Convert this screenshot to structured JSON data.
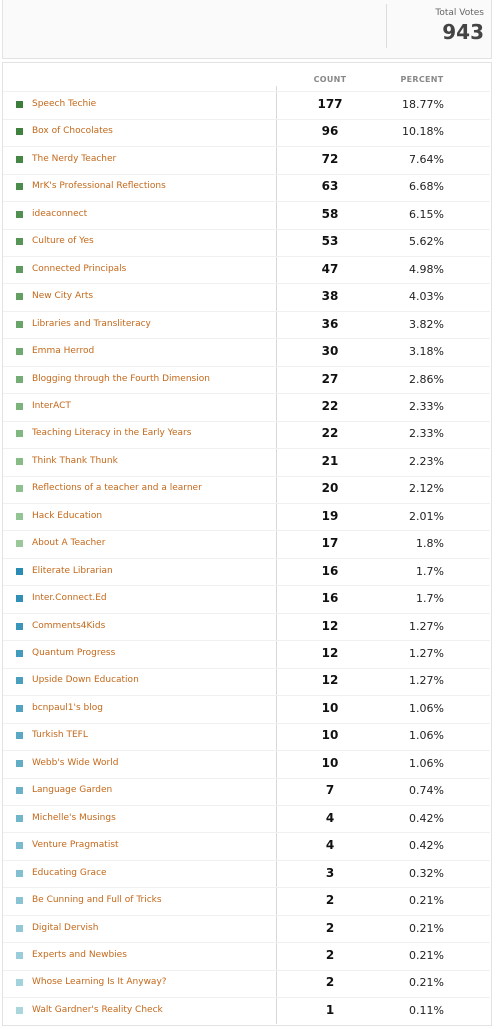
{
  "header": {
    "total_label": "Total Votes",
    "total": 943
  },
  "table": {
    "columns": [
      "COUNT",
      "PERCENT"
    ],
    "rows": [
      {
        "name": "Speech Techie",
        "count": 177,
        "percent": "18.77%",
        "color": "#3b7d3b"
      },
      {
        "name": "Box of Chocolates",
        "count": 96,
        "percent": "10.18%",
        "color": "#3f813f"
      },
      {
        "name": "The Nerdy Teacher",
        "count": 72,
        "percent": "7.64%",
        "color": "#458645"
      },
      {
        "name": "MrK's Professional Reflections",
        "count": 63,
        "percent": "6.68%",
        "color": "#4b8b4b"
      },
      {
        "name": "ideaconnect",
        "count": 58,
        "percent": "6.15%",
        "color": "#519051"
      },
      {
        "name": "Culture of Yes",
        "count": 53,
        "percent": "5.62%",
        "color": "#579557"
      },
      {
        "name": "Connected Principals",
        "count": 47,
        "percent": "4.98%",
        "color": "#5d9a5d"
      },
      {
        "name": "New City Arts",
        "count": 38,
        "percent": "4.03%",
        "color": "#639f63"
      },
      {
        "name": "Libraries and Transliteracy",
        "count": 36,
        "percent": "3.82%",
        "color": "#69a469"
      },
      {
        "name": "Emma Herrod",
        "count": 30,
        "percent": "3.18%",
        "color": "#6fa96f"
      },
      {
        "name": "Blogging through the Fourth Dimension",
        "count": 27,
        "percent": "2.86%",
        "color": "#75ae75"
      },
      {
        "name": "InterACT",
        "count": 22,
        "percent": "2.33%",
        "color": "#7bb37b"
      },
      {
        "name": "Teaching Literacy in the Early Years",
        "count": 22,
        "percent": "2.33%",
        "color": "#81b881"
      },
      {
        "name": "Think Thank Thunk",
        "count": 21,
        "percent": "2.23%",
        "color": "#87bc87"
      },
      {
        "name": "Reflections of a teacher and a learner",
        "count": 20,
        "percent": "2.12%",
        "color": "#8dc08d"
      },
      {
        "name": "Hack Education",
        "count": 19,
        "percent": "2.01%",
        "color": "#93c493"
      },
      {
        "name": "About A Teacher",
        "count": 17,
        "percent": "1.8%",
        "color": "#9ac89a"
      },
      {
        "name": "Eliterate Librarian",
        "count": 16,
        "percent": "1.7%",
        "color": "#2a8cb4"
      },
      {
        "name": "Inter.Connect.Ed",
        "count": 16,
        "percent": "1.7%",
        "color": "#3290b6"
      },
      {
        "name": "Comments4Kids",
        "count": 12,
        "percent": "1.27%",
        "color": "#3a95b9"
      },
      {
        "name": "Quantum Progress",
        "count": 12,
        "percent": "1.27%",
        "color": "#429abc"
      },
      {
        "name": "Upside Down Education",
        "count": 12,
        "percent": "1.27%",
        "color": "#4a9ebe"
      },
      {
        "name": "bcnpaul1's blog",
        "count": 10,
        "percent": "1.06%",
        "color": "#52a3c1"
      },
      {
        "name": "Turkish TEFL",
        "count": 10,
        "percent": "1.06%",
        "color": "#5aa8c4"
      },
      {
        "name": "Webb's Wide World",
        "count": 10,
        "percent": "1.06%",
        "color": "#62acc6"
      },
      {
        "name": "Language Garden",
        "count": 7,
        "percent": "0.74%",
        "color": "#6ab1c9"
      },
      {
        "name": "Michelle's Musings",
        "count": 4,
        "percent": "0.42%",
        "color": "#72b6cc"
      },
      {
        "name": "Venture Pragmatist",
        "count": 4,
        "percent": "0.42%",
        "color": "#7abace"
      },
      {
        "name": "Educating Grace",
        "count": 3,
        "percent": "0.32%",
        "color": "#82bfd1"
      },
      {
        "name": "Be Cunning and Full of Tricks",
        "count": 2,
        "percent": "0.21%",
        "color": "#8ac4d4"
      },
      {
        "name": "Digital Dervish",
        "count": 2,
        "percent": "0.21%",
        "color": "#92c8d6"
      },
      {
        "name": "Experts and Newbies",
        "count": 2,
        "percent": "0.21%",
        "color": "#9acdd9"
      },
      {
        "name": "Whose Learning Is It Anyway?",
        "count": 2,
        "percent": "0.21%",
        "color": "#a2d2dc"
      },
      {
        "name": "Walt Gardner's Reality Check",
        "count": 1,
        "percent": "0.11%",
        "color": "#aad6de"
      }
    ]
  }
}
